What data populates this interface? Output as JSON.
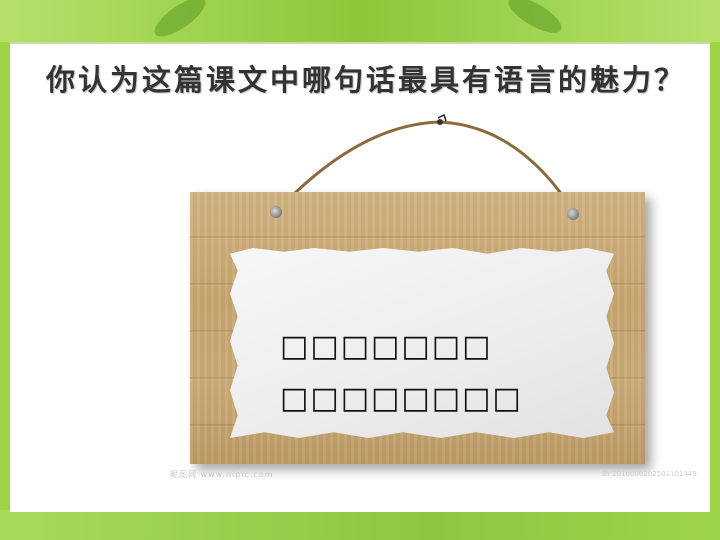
{
  "slide": {
    "question": "你认为这篇课文中哪句话最具有语言的魅力？",
    "answer_line_1": "□□□□□□□",
    "answer_line_2": "□□□□□□□□"
  },
  "watermark": {
    "left": "昵图网 www.nipic.com",
    "right": "BY:2010000202501101449"
  },
  "colors": {
    "background": "#9fd44a",
    "board": "#c7a671",
    "paper": "#eeeeee"
  }
}
